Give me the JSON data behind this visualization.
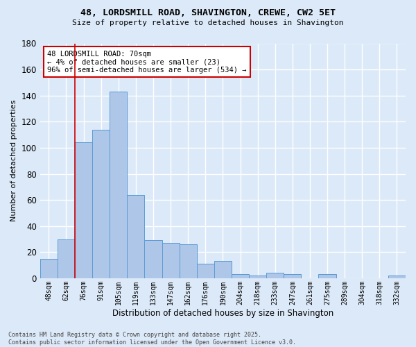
{
  "title1": "48, LORDSMILL ROAD, SHAVINGTON, CREWE, CW2 5ET",
  "title2": "Size of property relative to detached houses in Shavington",
  "xlabel": "Distribution of detached houses by size in Shavington",
  "ylabel": "Number of detached properties",
  "bin_labels": [
    "48sqm",
    "62sqm",
    "76sqm",
    "91sqm",
    "105sqm",
    "119sqm",
    "133sqm",
    "147sqm",
    "162sqm",
    "176sqm",
    "190sqm",
    "204sqm",
    "218sqm",
    "233sqm",
    "247sqm",
    "261sqm",
    "275sqm",
    "289sqm",
    "304sqm",
    "318sqm",
    "332sqm"
  ],
  "bar_heights": [
    15,
    30,
    104,
    114,
    143,
    64,
    29,
    27,
    26,
    11,
    13,
    3,
    2,
    4,
    3,
    0,
    3,
    0,
    0,
    0,
    2
  ],
  "bar_color": "#aec6e8",
  "bar_edge_color": "#5a9bd4",
  "vline_x": 1.5,
  "vline_color": "#cc0000",
  "annotation_text": "48 LORDSMILL ROAD: 70sqm\n← 4% of detached houses are smaller (23)\n96% of semi-detached houses are larger (534) →",
  "annotation_box_color": "#ffffff",
  "annotation_box_edge_color": "#cc0000",
  "bg_color": "#dce9f8",
  "grid_color": "#ffffff",
  "footer": "Contains HM Land Registry data © Crown copyright and database right 2025.\nContains public sector information licensed under the Open Government Licence v3.0.",
  "ylim": [
    0,
    180
  ]
}
